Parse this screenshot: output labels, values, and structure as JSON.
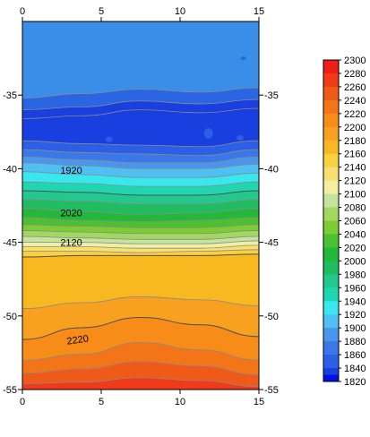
{
  "chart_data": {
    "type": "heatmap",
    "title": "",
    "xlabel": "",
    "ylabel": "",
    "xlim": [
      0,
      15
    ],
    "ylim": [
      -55,
      -30
    ],
    "x_ticks": [
      "0",
      "5",
      "10",
      "15"
    ],
    "x_tick_values": [
      0,
      5,
      10,
      15
    ],
    "y_ticks": [
      "-35",
      "-40",
      "-45",
      "-50",
      "-55"
    ],
    "y_tick_values": [
      -35,
      -40,
      -45,
      -50,
      -55
    ],
    "colorbar": {
      "levels": [
        1820,
        1840,
        1860,
        1880,
        1900,
        1920,
        1940,
        1960,
        1980,
        2000,
        2020,
        2040,
        2060,
        2080,
        2100,
        2120,
        2140,
        2160,
        2180,
        2200,
        2220,
        2240,
        2260,
        2280,
        2300
      ],
      "labels": [
        "1820",
        "1840",
        "1860",
        "1880",
        "1900",
        "1920",
        "1940",
        "1960",
        "1980",
        "2000",
        "2020",
        "2040",
        "2060",
        "2080",
        "2100",
        "2120",
        "2140",
        "2160",
        "2180",
        "2200",
        "2220",
        "2240",
        "2260",
        "2280",
        "2300"
      ],
      "colors": [
        "#0010e0",
        "#1a3fe0",
        "#2a5fe6",
        "#3a78ea",
        "#4a96ee",
        "#4ec0f4",
        "#38e8ee",
        "#20d6b0",
        "#22c88e",
        "#20bc60",
        "#22b83a",
        "#4cc030",
        "#7ccc34",
        "#a2d860",
        "#c4e4a0",
        "#f2f0a0",
        "#f8e070",
        "#f8d040",
        "#f8b820",
        "#f8a020",
        "#f88c18",
        "#f47418",
        "#f05a18",
        "#f03a18",
        "#f01c18"
      ]
    },
    "contour_labels": [
      {
        "text": "1920",
        "x": 3.1,
        "y": -40.1
      },
      {
        "text": "2020",
        "x": 3.1,
        "y": -43.0
      },
      {
        "text": "2120",
        "x": 3.1,
        "y": -45.0
      },
      {
        "text": "2220",
        "x": 3.5,
        "y": -51.6
      }
    ]
  }
}
